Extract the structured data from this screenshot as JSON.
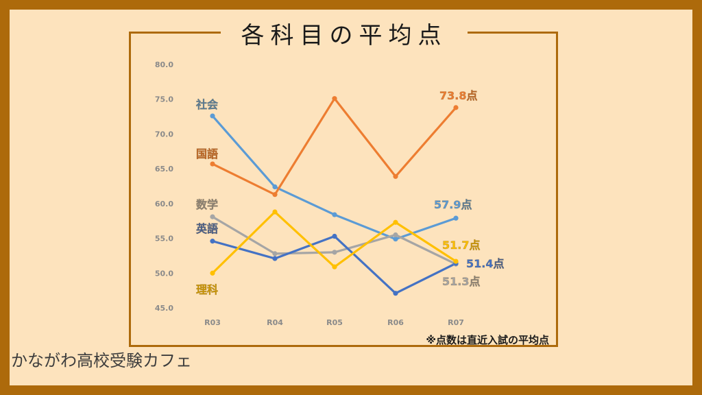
{
  "brand": "かながわ高校受験カフェ",
  "chart_data": {
    "type": "line",
    "title": "各科目の平均点",
    "note": "※点数は直近入試の平均点",
    "categories": [
      "R03",
      "R04",
      "R05",
      "R06",
      "R07"
    ],
    "ylim": [
      45,
      80
    ],
    "yticks": [
      "45.0",
      "50.0",
      "55.0",
      "60.0",
      "65.0",
      "70.0",
      "75.0",
      "80.0"
    ],
    "grid": false,
    "series": [
      {
        "name": "社会",
        "color": "#5b9bd5",
        "values": [
          72.6,
          62.4,
          58.4,
          54.9,
          57.9
        ],
        "end_label": "57.9点"
      },
      {
        "name": "国語",
        "color": "#ed7d31",
        "values": [
          65.7,
          61.3,
          75.1,
          63.9,
          73.8
        ],
        "end_label": "73.8点"
      },
      {
        "name": "数学",
        "color": "#a5a5a5",
        "values": [
          58.1,
          52.8,
          53.0,
          55.5,
          51.3
        ],
        "end_label": "51.3点"
      },
      {
        "name": "英語",
        "color": "#4472c4",
        "values": [
          54.6,
          52.1,
          55.3,
          47.1,
          51.4
        ],
        "end_label": "51.4点"
      },
      {
        "name": "理科",
        "color": "#ffc000",
        "values": [
          50.0,
          58.8,
          50.9,
          57.3,
          51.7
        ],
        "end_label": "51.7点"
      }
    ]
  }
}
